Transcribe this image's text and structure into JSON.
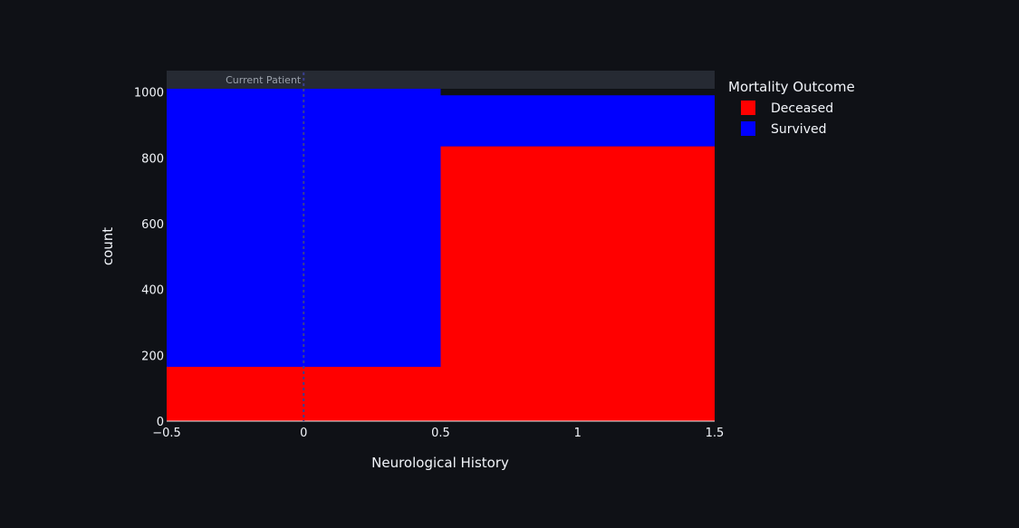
{
  "chart_data": {
    "type": "bar",
    "barmode": "stack",
    "xlabel": "Neurological History",
    "ylabel": "count",
    "xlim": [
      -0.5,
      1.5
    ],
    "ylim": [
      0,
      1065
    ],
    "x_ticks": [
      "−0.5",
      "0",
      "0.5",
      "1",
      "1.5"
    ],
    "x_tick_values": [
      -0.5,
      0,
      0.5,
      1,
      1.5
    ],
    "y_ticks": [
      "0",
      "200",
      "400",
      "600",
      "800",
      "1000"
    ],
    "y_tick_values": [
      0,
      200,
      400,
      600,
      800,
      1000
    ],
    "bins": [
      {
        "x0": -0.5,
        "x1": 0.5
      },
      {
        "x0": 0.5,
        "x1": 1.5
      }
    ],
    "series": [
      {
        "name": "Deceased",
        "color": "#ff0000",
        "values": [
          165,
          835
        ]
      },
      {
        "name": "Survived",
        "color": "#0000ff",
        "values": [
          845,
          155
        ]
      }
    ],
    "legend": {
      "title": "Mortality Outcome",
      "position": "right"
    },
    "annotation": {
      "text": "Current Patient",
      "x": 0,
      "style": "dotted vertical line"
    },
    "grid": false
  },
  "colors": {
    "background": "#0f1116",
    "plot_background": "#0f1116",
    "annotation_band": "#262a33",
    "text": "#f2f5fa",
    "vline": "#3a3f8f"
  }
}
